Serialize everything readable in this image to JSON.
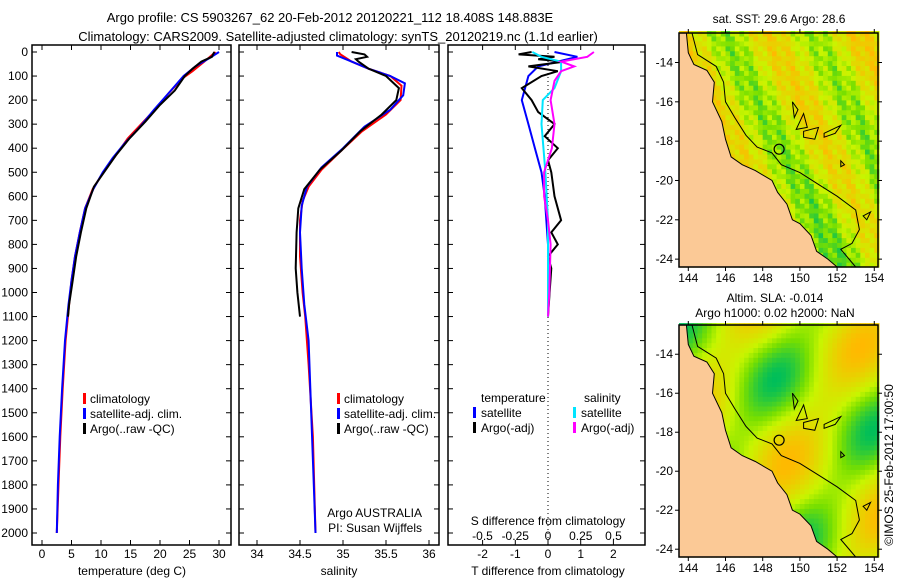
{
  "title": {
    "line1": "Argo profile: CS 5903267_62 20-Feb-2012 20120221_112 18.408S 148.883E",
    "line2": "Climatology: CARS2009. Satellite-adjusted climatology: synTS_20120219.nc (1.1d earlier)"
  },
  "colors": {
    "climatology": "#ff0000",
    "satellite": "#0000ff",
    "argo": "#000000",
    "sal_satellite": "#00e5ff",
    "sal_argo": "#ff00ff",
    "land": "#fbc996"
  },
  "depth_ticks": [
    "0",
    "100",
    "200",
    "300",
    "400",
    "500",
    "600",
    "700",
    "800",
    "900",
    "1000",
    "1100",
    "1200",
    "1300",
    "1400",
    "1500",
    "1600",
    "1700",
    "1800",
    "1900",
    "2000"
  ],
  "chart_data": [
    {
      "type": "line",
      "name": "temperature-profile",
      "xlabel": "temperature (deg C)",
      "ylabel": "depth",
      "xlim": [
        -0.4,
        32.1
      ],
      "ylim": [
        2000,
        0
      ],
      "x_ticks": [
        "0",
        "5",
        "10",
        "15",
        "20",
        "25",
        "30"
      ],
      "legend": [
        "climatology",
        "satellite-adj. clim.",
        "Argo(..raw -QC)"
      ],
      "series": [
        {
          "name": "climatology",
          "color": "#ff0000",
          "points": [
            [
              29.4,
              0
            ],
            [
              27.5,
              40
            ],
            [
              25.5,
              80
            ],
            [
              23.8,
              110
            ],
            [
              21.5,
              170
            ],
            [
              19.5,
              230
            ],
            [
              17.2,
              290
            ],
            [
              14.5,
              360
            ],
            [
              12.5,
              430
            ],
            [
              10.4,
              500
            ],
            [
              8.6,
              570
            ],
            [
              7.3,
              650
            ],
            [
              6.4,
              750
            ],
            [
              5.6,
              850
            ],
            [
              5.0,
              950
            ],
            [
              4.6,
              1050
            ],
            [
              4.0,
              1200
            ],
            [
              3.5,
              1400
            ],
            [
              3.1,
              1600
            ],
            [
              2.8,
              1800
            ],
            [
              2.5,
              2000
            ]
          ]
        },
        {
          "name": "satellite-adj. clim.",
          "color": "#0000ff",
          "points": [
            [
              30.0,
              0
            ],
            [
              28.4,
              25
            ],
            [
              26.0,
              60
            ],
            [
              24.0,
              100
            ],
            [
              21.5,
              170
            ],
            [
              19.0,
              240
            ],
            [
              16.3,
              320
            ],
            [
              14.0,
              380
            ],
            [
              12.0,
              440
            ],
            [
              10.3,
              500
            ],
            [
              8.7,
              570
            ],
            [
              7.3,
              650
            ],
            [
              6.4,
              750
            ],
            [
              5.6,
              850
            ],
            [
              5.0,
              950
            ],
            [
              4.5,
              1050
            ],
            [
              3.9,
              1200
            ],
            [
              3.4,
              1400
            ],
            [
              3.0,
              1600
            ],
            [
              2.7,
              1800
            ],
            [
              2.5,
              2000
            ]
          ]
        },
        {
          "name": "Argo(..raw -QC)",
          "color": "#000000",
          "points": [
            [
              29.2,
              0
            ],
            [
              28.8,
              20
            ],
            [
              27.0,
              40
            ],
            [
              25.5,
              70
            ],
            [
              24.2,
              100
            ],
            [
              22.5,
              160
            ],
            [
              20.0,
              220
            ],
            [
              17.5,
              290
            ],
            [
              14.8,
              360
            ],
            [
              12.5,
              430
            ],
            [
              10.5,
              500
            ],
            [
              8.8,
              560
            ],
            [
              7.5,
              650
            ],
            [
              6.6,
              750
            ],
            [
              5.8,
              850
            ],
            [
              5.2,
              950
            ],
            [
              4.6,
              1050
            ],
            [
              4.4,
              1100
            ]
          ]
        }
      ]
    },
    {
      "type": "line",
      "name": "salinity-profile",
      "xlabel": "salinity",
      "xlim": [
        33.8,
        36.1
      ],
      "ylim": [
        2000,
        0
      ],
      "x_ticks": [
        "34",
        "34.5",
        "35",
        "35.5",
        "36"
      ],
      "legend": [
        "climatology",
        "satellite-adj. clim.",
        "Argo(..raw -QC)"
      ],
      "annotation": [
        "Argo AUSTRALIA",
        "PI: Susan Wijffels"
      ],
      "series": [
        {
          "name": "climatology",
          "color": "#ff0000",
          "points": [
            [
              34.95,
              0
            ],
            [
              34.97,
              10
            ],
            [
              35.1,
              40
            ],
            [
              35.3,
              70
            ],
            [
              35.55,
              100
            ],
            [
              35.68,
              140
            ],
            [
              35.67,
              200
            ],
            [
              35.5,
              260
            ],
            [
              35.22,
              330
            ],
            [
              34.98,
              410
            ],
            [
              34.75,
              490
            ],
            [
              34.6,
              560
            ],
            [
              34.53,
              620
            ],
            [
              34.5,
              700
            ],
            [
              34.5,
              850
            ],
            [
              34.53,
              1000
            ],
            [
              34.56,
              1100
            ],
            [
              34.6,
              1300
            ],
            [
              34.65,
              1600
            ],
            [
              34.68,
              2000
            ]
          ]
        },
        {
          "name": "satellite-adj. clim.",
          "color": "#0000ff",
          "points": [
            [
              34.93,
              0
            ],
            [
              34.93,
              15
            ],
            [
              35.1,
              40
            ],
            [
              35.3,
              70
            ],
            [
              35.55,
              100
            ],
            [
              35.72,
              130
            ],
            [
              35.7,
              180
            ],
            [
              35.55,
              240
            ],
            [
              35.25,
              310
            ],
            [
              35.0,
              400
            ],
            [
              34.75,
              480
            ],
            [
              34.58,
              560
            ],
            [
              34.52,
              640
            ],
            [
              34.5,
              750
            ],
            [
              34.52,
              900
            ],
            [
              34.55,
              1050
            ],
            [
              34.6,
              1200
            ],
            [
              34.63,
              1500
            ],
            [
              34.66,
              1800
            ],
            [
              34.68,
              2000
            ]
          ]
        },
        {
          "name": "Argo(..raw -QC)",
          "color": "#000000",
          "points": [
            [
              35.1,
              0
            ],
            [
              35.25,
              10
            ],
            [
              35.28,
              20
            ],
            [
              35.15,
              30
            ],
            [
              35.18,
              40
            ],
            [
              35.3,
              70
            ],
            [
              35.5,
              100
            ],
            [
              35.65,
              150
            ],
            [
              35.62,
              200
            ],
            [
              35.45,
              260
            ],
            [
              35.2,
              330
            ],
            [
              34.98,
              410
            ],
            [
              34.73,
              490
            ],
            [
              34.55,
              570
            ],
            [
              34.48,
              650
            ],
            [
              34.46,
              750
            ],
            [
              34.45,
              900
            ],
            [
              34.47,
              1000
            ],
            [
              34.5,
              1100
            ]
          ]
        }
      ]
    },
    {
      "type": "line",
      "name": "difference-profile",
      "xlabel": "T difference from climatology",
      "x2label": "S difference from climatology",
      "xlim": [
        -2.9,
        2.9
      ],
      "ylim": [
        2000,
        0
      ],
      "x_ticks": [
        "-2",
        "-1",
        "0",
        "1",
        "2"
      ],
      "x2_ticks": [
        "-0.5",
        "-0.25",
        "0",
        "0.25",
        "0.5"
      ],
      "legend_temperature": {
        "title": "temperature",
        "items": [
          "satellite",
          "Argo(-adj)"
        ]
      },
      "legend_salinity": {
        "title": "salinity",
        "items": [
          "satellite",
          "Argo(-adj)"
        ]
      },
      "series": [
        {
          "name": "temperature satellite",
          "color": "#0000ff",
          "unit": "T",
          "points": [
            [
              0.2,
              0
            ],
            [
              0.9,
              20
            ],
            [
              0.3,
              40
            ],
            [
              -0.3,
              60
            ],
            [
              -0.6,
              100
            ],
            [
              -0.8,
              200
            ],
            [
              -0.6,
              300
            ],
            [
              -0.4,
              400
            ],
            [
              -0.2,
              500
            ],
            [
              -0.1,
              600
            ],
            [
              0,
              800
            ],
            [
              0,
              1000
            ],
            [
              0,
              1100
            ]
          ]
        },
        {
          "name": "temperature Argo(-adj)",
          "color": "#000000",
          "unit": "T",
          "points": [
            [
              -0.5,
              0
            ],
            [
              -0.9,
              10
            ],
            [
              0.2,
              20
            ],
            [
              -0.3,
              30
            ],
            [
              0.5,
              40
            ],
            [
              -0.6,
              60
            ],
            [
              0.3,
              80
            ],
            [
              -0.2,
              100
            ],
            [
              -0.8,
              150
            ],
            [
              -0.5,
              200
            ],
            [
              -0.3,
              250
            ],
            [
              0.2,
              300
            ],
            [
              -0.1,
              350
            ],
            [
              0.3,
              400
            ],
            [
              0,
              450
            ],
            [
              0.1,
              500
            ],
            [
              0.2,
              600
            ],
            [
              0.4,
              700
            ],
            [
              0.1,
              750
            ],
            [
              0.3,
              800
            ],
            [
              0,
              850
            ],
            [
              0.1,
              900
            ],
            [
              0.05,
              1000
            ],
            [
              0,
              1100
            ]
          ]
        },
        {
          "name": "salinity satellite",
          "color": "#00e5ff",
          "unit": "S",
          "points": [
            [
              -0.12,
              0
            ],
            [
              -0.05,
              20
            ],
            [
              0.1,
              40
            ],
            [
              0.1,
              80
            ],
            [
              0.05,
              150
            ],
            [
              -0.04,
              200
            ],
            [
              -0.05,
              300
            ],
            [
              -0.02,
              500
            ],
            [
              0,
              700
            ],
            [
              0,
              1000
            ],
            [
              0,
              1100
            ]
          ]
        },
        {
          "name": "salinity Argo(-adj)",
          "color": "#ff00ff",
          "unit": "S",
          "points": [
            [
              0.35,
              0
            ],
            [
              0.3,
              20
            ],
            [
              0.1,
              40
            ],
            [
              0.2,
              60
            ],
            [
              0.1,
              80
            ],
            [
              0.05,
              120
            ],
            [
              0.02,
              200
            ],
            [
              0.05,
              300
            ],
            [
              0.03,
              400
            ],
            [
              -0.03,
              500
            ],
            [
              -0.03,
              600
            ],
            [
              0,
              700
            ],
            [
              0.02,
              800
            ],
            [
              0.01,
              1000
            ],
            [
              0,
              1100
            ]
          ]
        }
      ]
    },
    {
      "type": "heatmap",
      "name": "sst-map",
      "title": "sat. SST: 29.6 Argo: 28.6",
      "xlim": [
        143.5,
        154.2
      ],
      "ylim": [
        -24.4,
        -12.5
      ],
      "x_ticks": [
        "144",
        "146",
        "148",
        "150",
        "152",
        "154"
      ],
      "y_ticks": [
        "-14",
        "-16",
        "-18",
        "-20",
        "-22",
        "-24"
      ],
      "argo_position": [
        148.883,
        -18.408
      ]
    },
    {
      "type": "heatmap",
      "name": "sla-map",
      "title": "Altim. SLA: -0.014",
      "subtitle": "Argo h1000: 0.02 h2000: NaN",
      "xlim": [
        143.5,
        154.2
      ],
      "ylim": [
        -24.4,
        -12.5
      ],
      "x_ticks": [
        "144",
        "146",
        "148",
        "150",
        "152",
        "154"
      ],
      "y_ticks": [
        "-14",
        "-16",
        "-18",
        "-20",
        "-22",
        "-24"
      ],
      "argo_position": [
        148.883,
        -18.408
      ]
    }
  ],
  "footer": {
    "copyright": "©IMOS 25-Feb-2012 17:00:50"
  }
}
